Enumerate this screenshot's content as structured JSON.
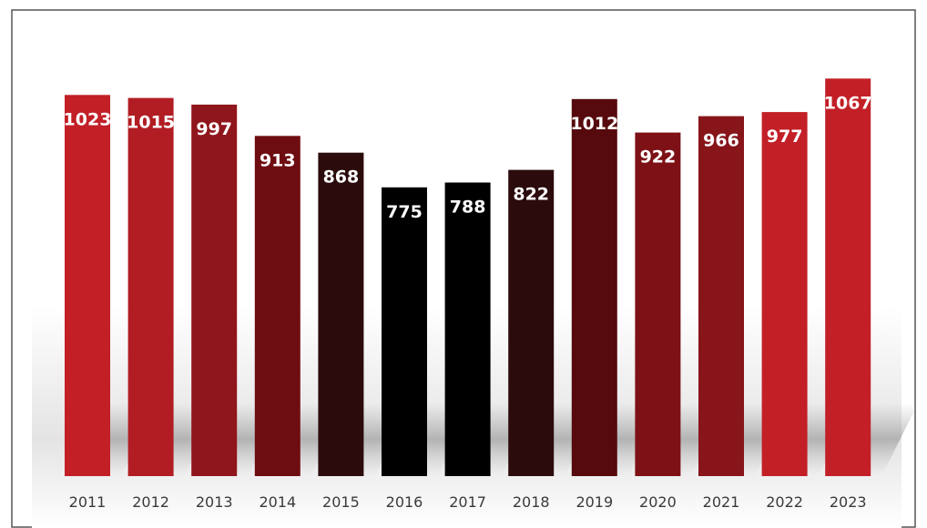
{
  "chart_data": {
    "type": "bar",
    "categories": [
      "2011",
      "2012",
      "2013",
      "2014",
      "2015",
      "2016",
      "2017",
      "2018",
      "2019",
      "2020",
      "2021",
      "2022",
      "2023"
    ],
    "values": [
      1023,
      1015,
      997,
      913,
      868,
      775,
      788,
      822,
      1012,
      922,
      966,
      977,
      1067
    ],
    "bar_colors": [
      "#c21f26",
      "#b21d24",
      "#8f161c",
      "#6e0d11",
      "#2b0b0c",
      "#000000",
      "#000000",
      "#2b0b0c",
      "#560a0d",
      "#7d1116",
      "#87151a",
      "#c21f26",
      "#c21f26"
    ],
    "ylim": [
      0,
      1090
    ],
    "data_labels": true,
    "legend": "none",
    "grid": false
  }
}
